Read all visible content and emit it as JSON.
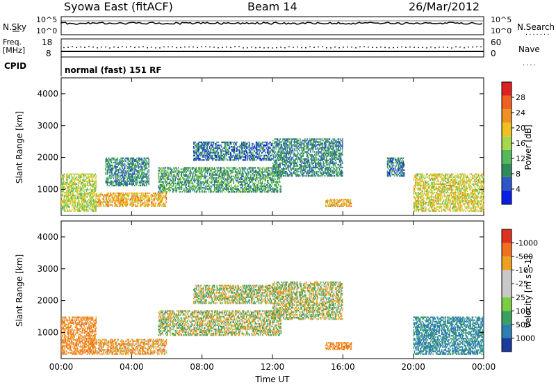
{
  "header": {
    "station": "Syowa East (fitACF)",
    "beam": "Beam 14",
    "date": "26/Mar/2012"
  },
  "top_panels": {
    "nsky_label": "N.Sky",
    "nsky_top": "10^5",
    "nsky_bottom": "10^0",
    "nsearch_label": "N.Search",
    "nsearch_top": "10^5",
    "nsearch_bottom": "10^0",
    "freq_label_1": "Freq.",
    "freq_label_2": "[MHz]",
    "freq_top": "18",
    "freq_bottom": "8",
    "nave_label": "Nave",
    "nave_top": "60",
    "nave_bottom": "0",
    "cpid_label": "CPID",
    "cpid_value": "normal (fast) 151 RF"
  },
  "colors": {
    "power_scale": [
      "#0a1fe6",
      "#2f55c8",
      "#2f8c5a",
      "#55b85a",
      "#a8d84a",
      "#f0c020",
      "#f09020",
      "#f06020",
      "#e02020"
    ],
    "velocity_scale": [
      "#1a3aa0",
      "#2c7fb0",
      "#3aa060",
      "#7acd40",
      "#c8c8c8",
      "#c8c8c8",
      "#f0a020",
      "#f07020",
      "#e03020"
    ]
  },
  "chart_data": [
    {
      "type": "heatmap",
      "title": "Power",
      "ylabel": "Slant Range [km]",
      "ylim": [
        180,
        4500
      ],
      "yticks": [
        "1000",
        "2000",
        "3000",
        "4000"
      ],
      "colorbar_label": "Power [dB]",
      "colorbar_ticks": [
        "4",
        "8",
        "12",
        "16",
        "20",
        "24",
        "28"
      ],
      "xlim_hours": [
        0,
        24
      ],
      "xticks": [
        "00:00",
        "04:00",
        "08:00",
        "12:00",
        "16:00",
        "20:00",
        "00:00"
      ],
      "regions": [
        {
          "t0": 0.0,
          "t1": 2.0,
          "r0": 300,
          "r1": 1500,
          "power": 18
        },
        {
          "t0": 2.0,
          "t1": 6.0,
          "r0": 450,
          "r1": 900,
          "power": 24
        },
        {
          "t0": 2.5,
          "t1": 5.0,
          "r0": 1100,
          "r1": 2000,
          "power": 10
        },
        {
          "t0": 5.5,
          "t1": 12.5,
          "r0": 900,
          "r1": 1700,
          "power": 12
        },
        {
          "t0": 7.5,
          "t1": 12.0,
          "r0": 1900,
          "r1": 2500,
          "power": 8
        },
        {
          "t0": 12.0,
          "t1": 16.0,
          "r0": 1400,
          "r1": 2600,
          "power": 10
        },
        {
          "t0": 15.0,
          "t1": 16.5,
          "r0": 450,
          "r1": 700,
          "power": 24
        },
        {
          "t0": 18.5,
          "t1": 19.5,
          "r0": 1400,
          "r1": 2000,
          "power": 8
        },
        {
          "t0": 20.0,
          "t1": 24.0,
          "r0": 300,
          "r1": 1500,
          "power": 20
        }
      ]
    },
    {
      "type": "heatmap",
      "title": "Velocity",
      "ylabel": "Slant Range [km]",
      "ylim": [
        180,
        4500
      ],
      "yticks": [
        "1000",
        "2000",
        "3000",
        "4000"
      ],
      "xlabel": "Time UT",
      "colorbar_label": "Velocity [m s^-1]",
      "colorbar_ticks": [
        "1000",
        "500",
        "100",
        "25",
        "-25",
        "-100",
        "-500",
        "-1000"
      ],
      "xlim_hours": [
        0,
        24
      ],
      "xticks": [
        "00:00",
        "04:00",
        "08:00",
        "12:00",
        "16:00",
        "20:00",
        "00:00"
      ],
      "regions": [
        {
          "t0": 0.0,
          "t1": 2.0,
          "r0": 300,
          "r1": 1500,
          "velocity": -300
        },
        {
          "t0": 2.0,
          "t1": 6.0,
          "r0": 300,
          "r1": 800,
          "velocity": -200
        },
        {
          "t0": 5.5,
          "t1": 12.5,
          "r0": 900,
          "r1": 1700,
          "velocity": 0
        },
        {
          "t0": 7.5,
          "t1": 12.0,
          "r0": 1900,
          "r1": 2500,
          "velocity": 0
        },
        {
          "t0": 12.0,
          "t1": 16.0,
          "r0": 1400,
          "r1": 2600,
          "velocity": 0
        },
        {
          "t0": 15.0,
          "t1": 16.5,
          "r0": 450,
          "r1": 700,
          "velocity": -300
        },
        {
          "t0": 20.0,
          "t1": 24.0,
          "r0": 300,
          "r1": 1500,
          "velocity": 400
        }
      ]
    }
  ]
}
